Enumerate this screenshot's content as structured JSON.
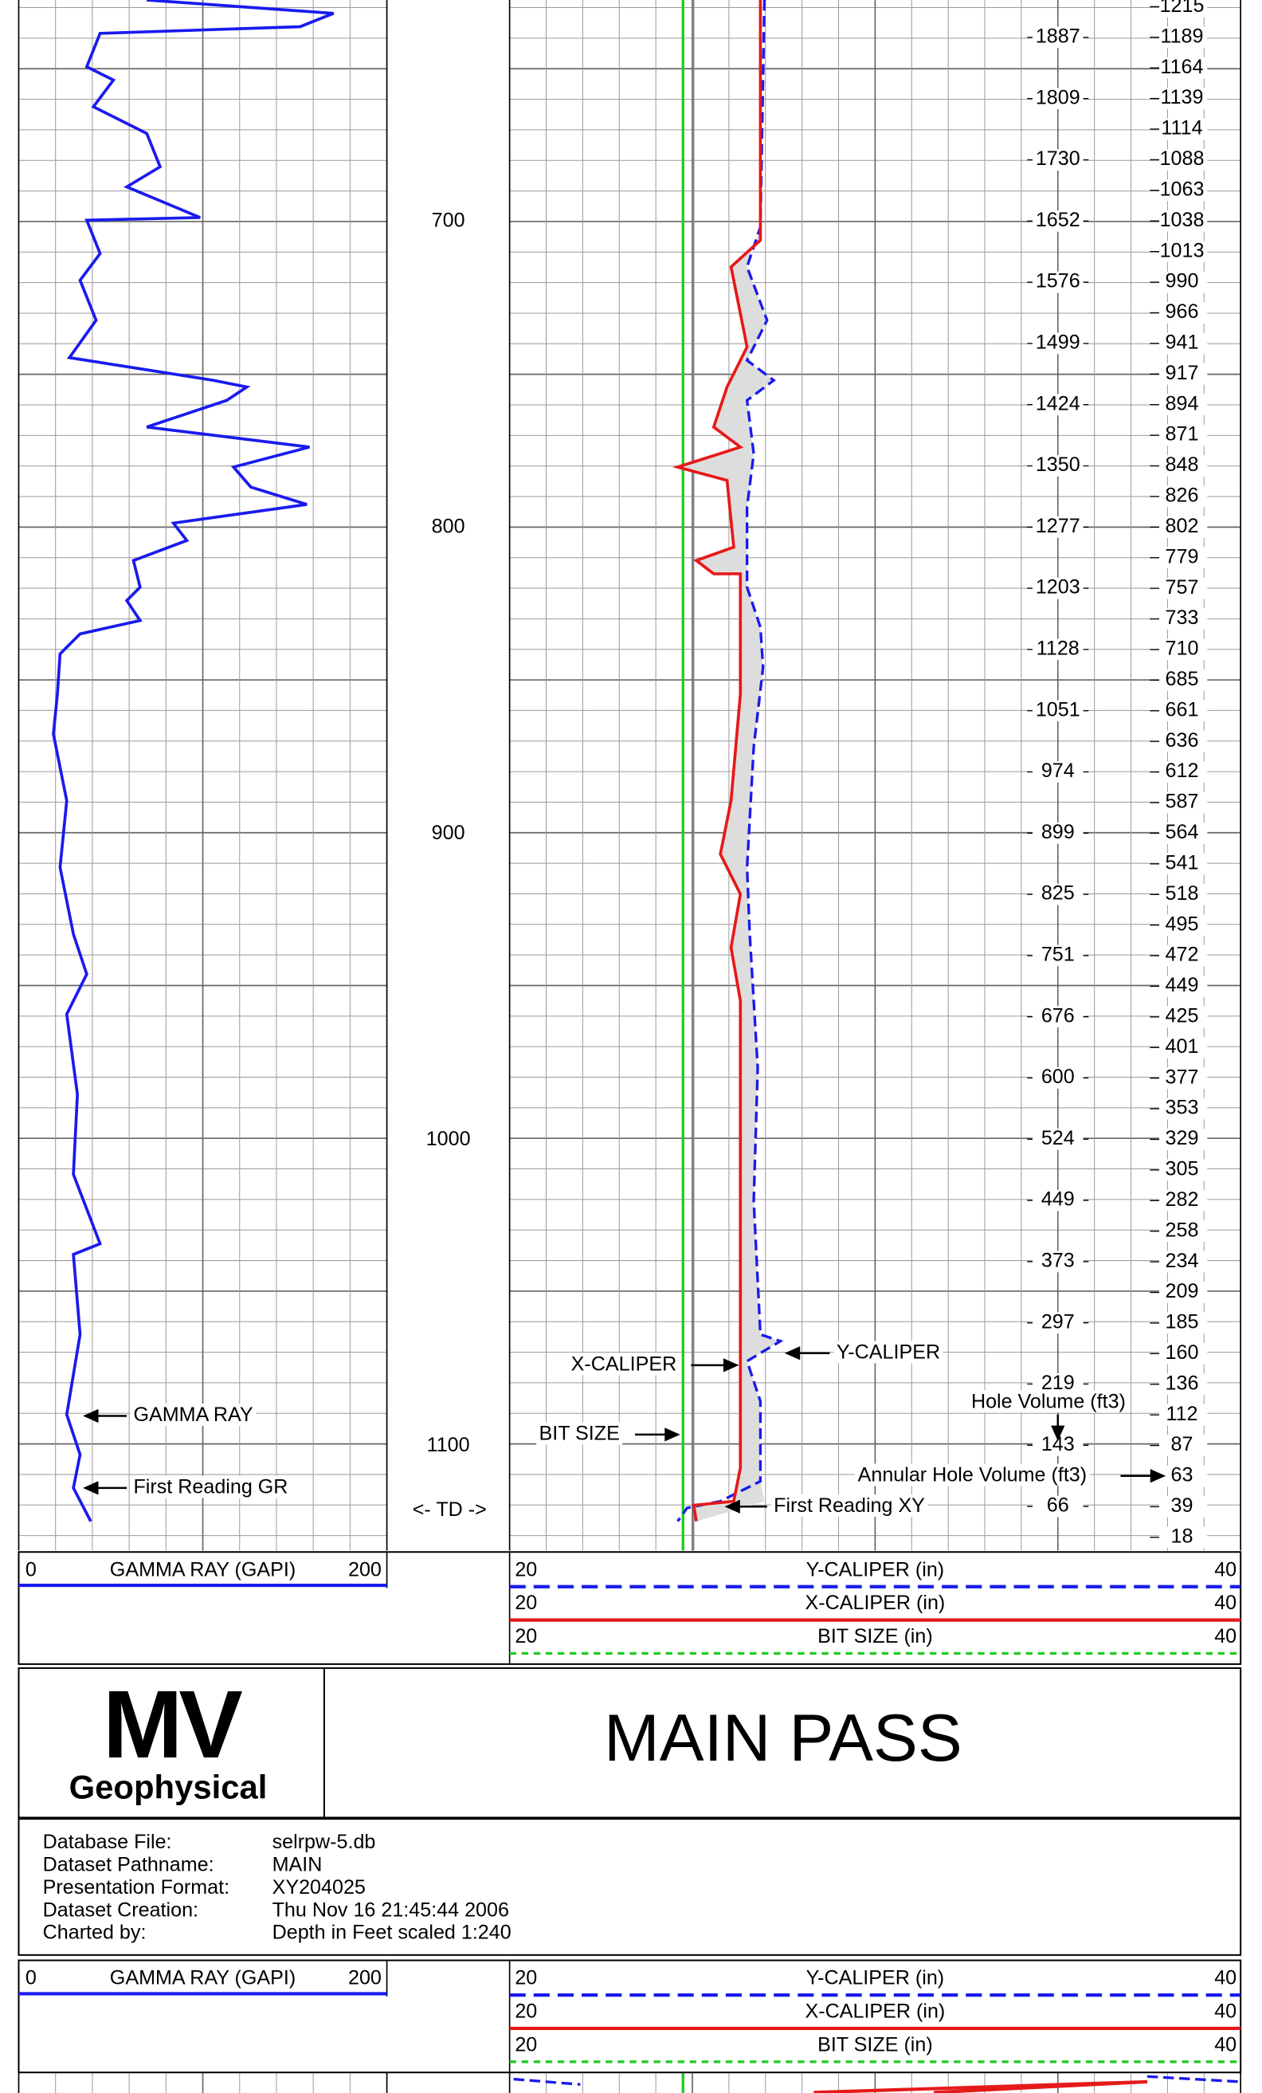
{
  "depth_track": {
    "depth_labels": [
      "700",
      "800",
      "900",
      "1000",
      "1100"
    ],
    "td_label": "<- TD ->"
  },
  "hole_volume": {
    "labels": [
      "1887",
      "1809",
      "1730",
      "1652",
      "1576",
      "1499",
      "1424",
      "1350",
      "1277",
      "1203",
      "1128",
      "1051",
      "974",
      "899",
      "825",
      "751",
      "676",
      "600",
      "524",
      "449",
      "373",
      "297",
      "219",
      "143",
      "66"
    ]
  },
  "annular_volume": {
    "labels": [
      "1215",
      "1189",
      "1164",
      "1139",
      "1114",
      "1088",
      "1063",
      "1038",
      "1013",
      "990",
      "966",
      "941",
      "917",
      "894",
      "871",
      "848",
      "826",
      "802",
      "779",
      "757",
      "733",
      "710",
      "685",
      "661",
      "636",
      "612",
      "587",
      "564",
      "541",
      "518",
      "495",
      "472",
      "449",
      "425",
      "401",
      "377",
      "353",
      "329",
      "305",
      "282",
      "258",
      "234",
      "209",
      "185",
      "160",
      "136",
      "112",
      "87",
      "63",
      "39",
      "18"
    ]
  },
  "annotations": {
    "gamma_ray": "GAMMA RAY",
    "first_reading_gr": "First Reading GR",
    "x_caliper": "X-CALIPER",
    "y_caliper": "Y-CALIPER",
    "hole_volume": "Hole Volume (ft3)",
    "bit_size": "BIT SIZE",
    "annular_hole_volume": "Annular Hole Volume (ft3)",
    "first_reading_xy": "First Reading XY"
  },
  "legend": {
    "gamma_ray": {
      "min": "0",
      "name": "GAMMA RAY (GAPI)",
      "max": "200"
    },
    "curves": [
      {
        "min": "20",
        "name": "Y-CALIPER (in)",
        "max": "40"
      },
      {
        "min": "20",
        "name": "X-CALIPER (in)",
        "max": "40"
      },
      {
        "min": "20",
        "name": "BIT SIZE (in)",
        "max": "40"
      }
    ]
  },
  "title_block": {
    "logo_main": "MV",
    "logo_sub": "Geophysical",
    "title": "MAIN PASS"
  },
  "info": {
    "rows": [
      [
        "Database File:",
        "selrpw-5.db"
      ],
      [
        "Dataset Pathname:",
        "MAIN"
      ],
      [
        "Presentation Format:",
        "XY204025"
      ],
      [
        "Dataset Creation:",
        "Thu Nov 16 21:45:44 2006"
      ],
      [
        "Charted by:",
        "Depth in Feet scaled 1:240"
      ]
    ]
  }
}
